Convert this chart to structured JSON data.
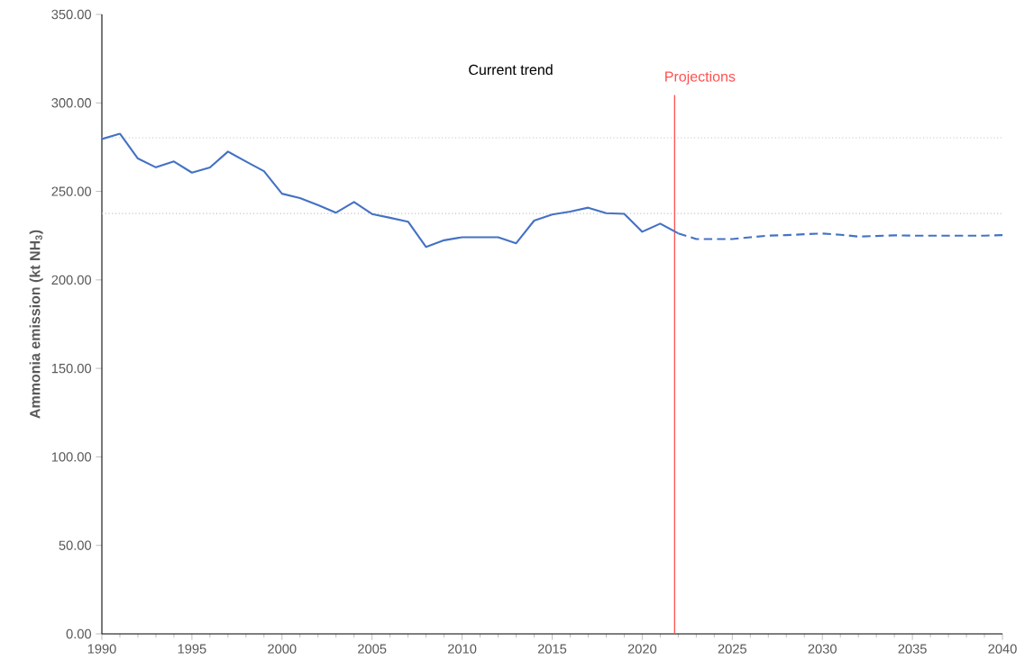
{
  "chart_data": {
    "type": "line",
    "ylabel": "Ammonia emission (kt NH$_{3}$)",
    "annotations": [
      "Current trend"
    ],
    "xlim": [
      1990,
      2040
    ],
    "xticks": [
      1990,
      1995,
      2000,
      2005,
      2010,
      2015,
      2020,
      2025,
      2030,
      2035,
      2040
    ],
    "ylim": [
      0,
      350
    ],
    "yticks": [
      {
        "value": 0,
        "label": "0.00"
      },
      {
        "value": 50,
        "label": "50.00"
      },
      {
        "value": 100,
        "label": "100.00"
      },
      {
        "value": 150,
        "label": "150.00"
      },
      {
        "value": 200,
        "label": "200.00"
      },
      {
        "value": 250,
        "label": "250.00"
      },
      {
        "value": 300,
        "label": "300.00"
      },
      {
        "value": 350,
        "label": "350.00"
      }
    ],
    "grid": false,
    "marker": "none",
    "ref_lines": [
      {
        "axis": "y",
        "value": 280.3,
        "color": "#bfbfbf",
        "line_style": "dotted"
      },
      {
        "axis": "y",
        "value": 237.5,
        "color": "#bfbfbf",
        "line_style": "dotted"
      },
      {
        "axis": "x",
        "value": 2021.8,
        "label": "Projections",
        "color": "#ff5050",
        "line_style": "solid"
      }
    ],
    "series": [
      {
        "color": "#4472c4",
        "line_style": "solid",
        "x": [
          1990,
          1991,
          1992,
          1993,
          1994,
          1995,
          1996,
          1997,
          1998,
          1999,
          2000,
          2001,
          2002,
          2003,
          2004,
          2005,
          2006,
          2007,
          2008,
          2009,
          2010,
          2011,
          2012,
          2013,
          2014,
          2015,
          2016,
          2017,
          2018,
          2019,
          2020,
          2021,
          2022
        ],
        "values": [
          279.6,
          282.6,
          268.6,
          263.6,
          266.9,
          260.6,
          263.5,
          272.5,
          266.9,
          261.4,
          248.7,
          246.2,
          242.3,
          238.0,
          244.0,
          237.2,
          235.1,
          232.9,
          218.6,
          222.4,
          224.1,
          224.1,
          224.1,
          220.7,
          233.5,
          236.9,
          238.6,
          240.8,
          237.7,
          237.3,
          227.2,
          231.8,
          226.3
        ]
      },
      {
        "color": "#4472c4",
        "line_style": "dashed",
        "x": [
          2022,
          2023,
          2024,
          2025,
          2026,
          2027,
          2028,
          2029,
          2030,
          2031,
          2032,
          2033,
          2034,
          2035,
          2036,
          2037,
          2038,
          2039,
          2040
        ],
        "values": [
          226.3,
          223.1,
          223.1,
          223.1,
          224.1,
          225.0,
          225.3,
          225.8,
          226.2,
          225.5,
          224.5,
          224.8,
          225.2,
          225.0,
          225.0,
          225.0,
          225.0,
          225.0,
          225.3
        ]
      }
    ]
  }
}
